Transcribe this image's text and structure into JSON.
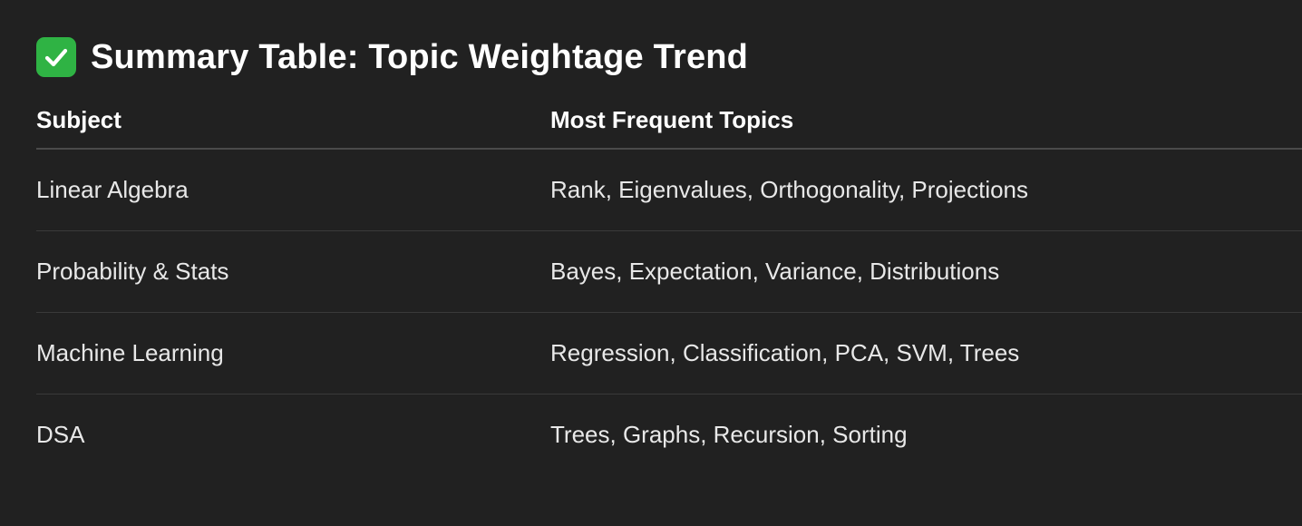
{
  "heading": {
    "icon": "check-mark-button-icon",
    "title": "Summary Table: Topic Weightage Trend"
  },
  "colors": {
    "background": "#212121",
    "text": "#ececec",
    "check_icon": "#2fb344"
  },
  "table": {
    "headers": {
      "subject": "Subject",
      "topics": "Most Frequent Topics"
    },
    "rows": [
      {
        "subject": "Linear Algebra",
        "topics": "Rank, Eigenvalues, Orthogonality, Projections"
      },
      {
        "subject": "Probability & Stats",
        "topics": "Bayes, Expectation, Variance, Distributions"
      },
      {
        "subject": "Machine Learning",
        "topics": "Regression, Classification, PCA, SVM, Trees"
      },
      {
        "subject": "DSA",
        "topics": "Trees, Graphs, Recursion, Sorting"
      }
    ]
  }
}
